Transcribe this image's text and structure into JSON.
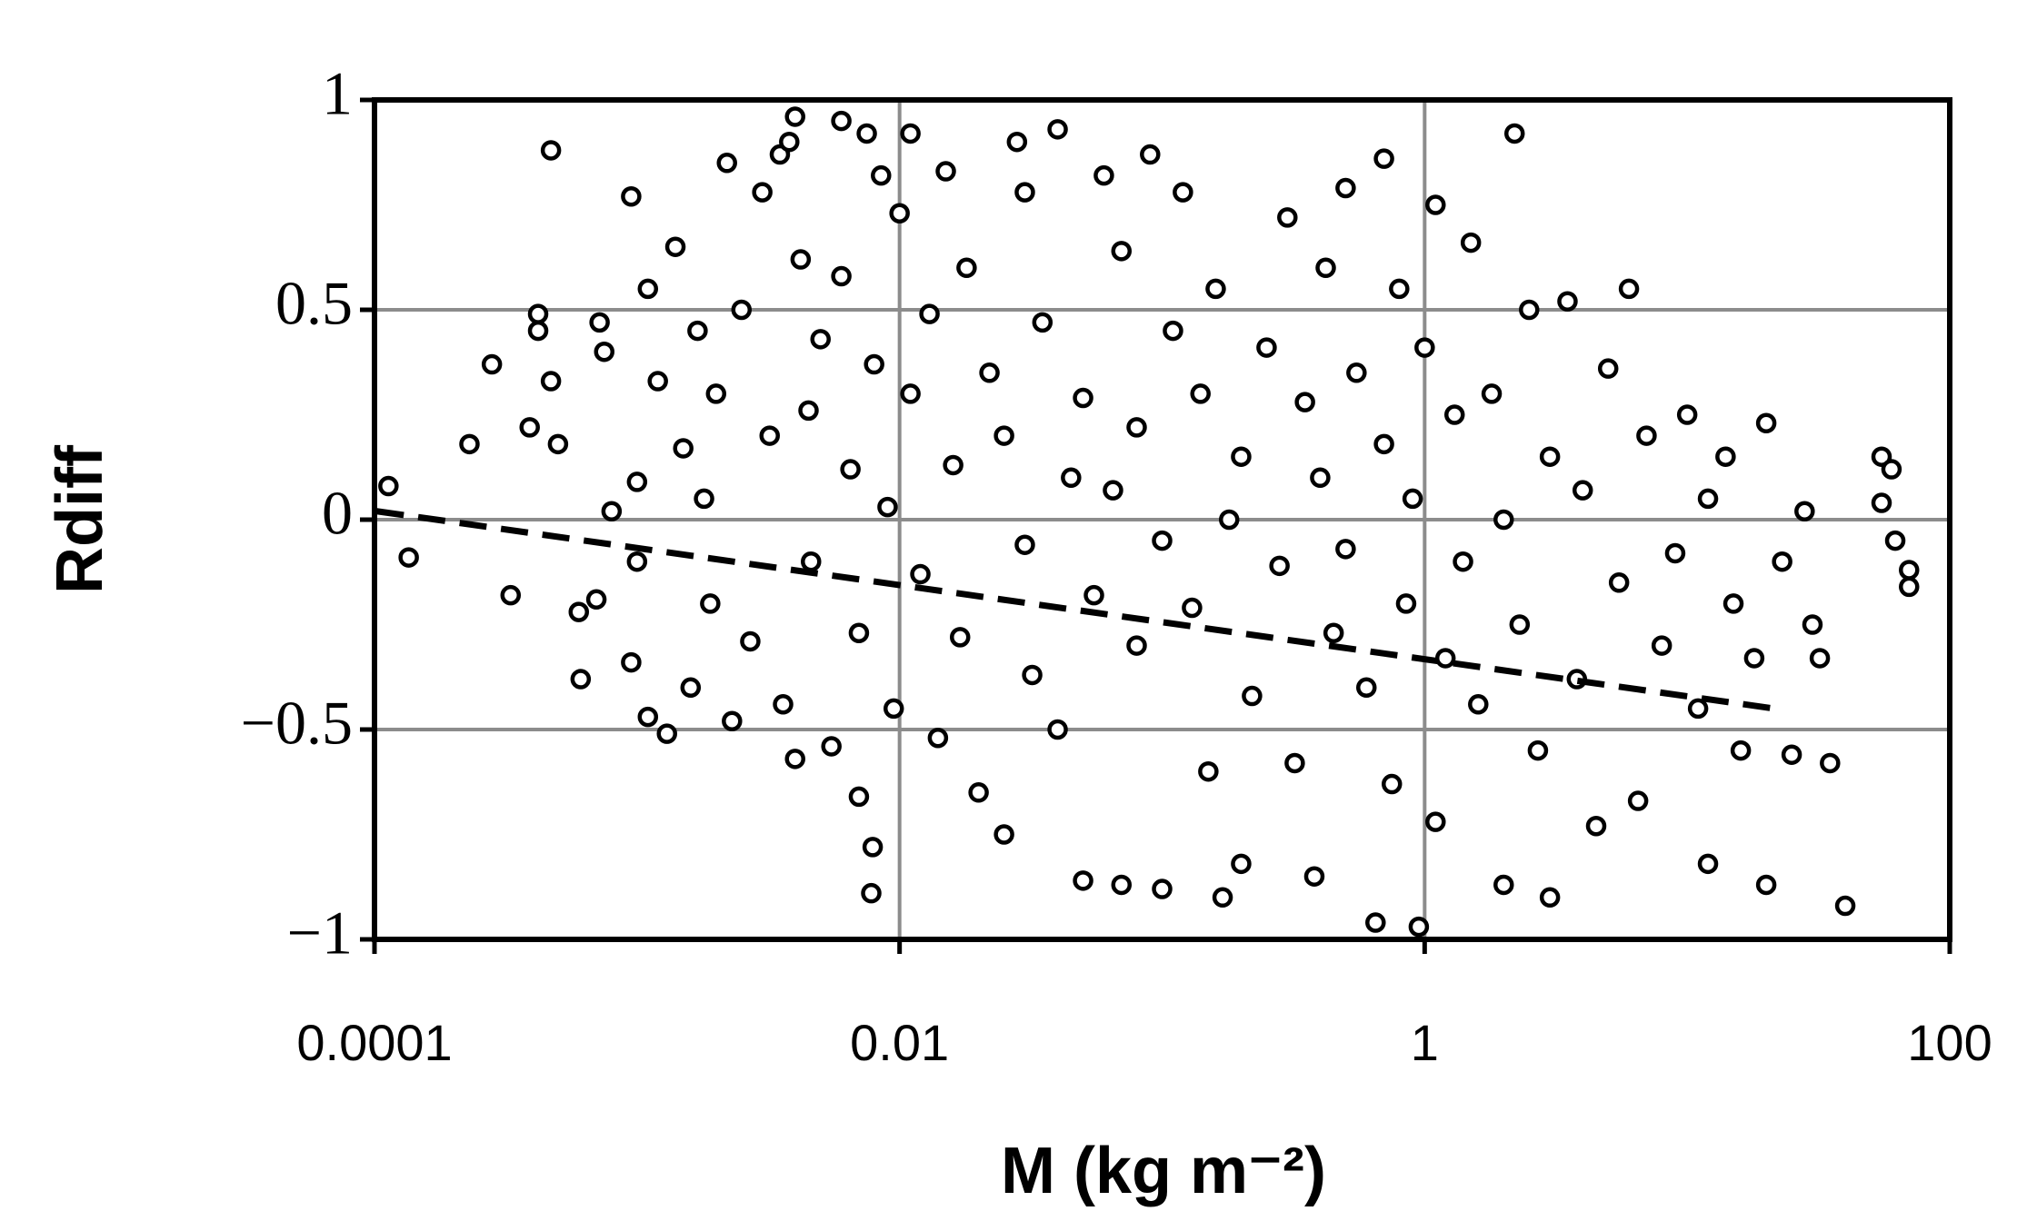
{
  "chart_data": {
    "type": "scatter",
    "x_label": "M (kg m⁻²)",
    "y_label": "Rdiff",
    "xscale": "log",
    "grid": true,
    "xlim": [
      0.0001,
      100
    ],
    "xticks": [
      0.0001,
      0.01,
      1,
      100
    ],
    "ylim": [
      -1,
      1
    ],
    "yticks": [
      {
        "value": -1,
        "label": "−1"
      },
      {
        "value": -0.5,
        "label": "−0.5"
      },
      0,
      0.5,
      1
    ],
    "series": [
      {
        "color": "#000000",
        "x": [
          0.000113,
          0.000135,
          0.00023,
          0.00028,
          0.00033,
          0.00039,
          0.00042,
          0.00042,
          0.00047,
          0.00047,
          0.0005,
          0.0006,
          0.00061,
          0.0007,
          0.00072,
          0.00075,
          0.0008,
          0.00095,
          0.00095,
          0.001,
          0.001,
          0.0011,
          0.0011,
          0.0012,
          0.0013,
          0.0014,
          0.0015,
          0.0016,
          0.0017,
          0.0018,
          0.0019,
          0.002,
          0.0022,
          0.0023,
          0.0025,
          0.0027,
          0.003,
          0.0032,
          0.0035,
          0.0036,
          0.0038,
          0.004,
          0.004,
          0.0042,
          0.0045,
          0.0046,
          0.005,
          0.0055,
          0.006,
          0.006,
          0.0065,
          0.007,
          0.0075,
          0.007,
          0.008,
          0.0078,
          0.0079,
          0.0085,
          0.009,
          0.0095,
          0.01,
          0.011,
          0.011,
          0.012,
          0.013,
          0.014,
          0.015,
          0.016,
          0.017,
          0.018,
          0.02,
          0.022,
          0.025,
          0.025,
          0.028,
          0.03,
          0.03,
          0.032,
          0.035,
          0.04,
          0.04,
          0.045,
          0.05,
          0.05,
          0.055,
          0.06,
          0.065,
          0.07,
          0.07,
          0.08,
          0.08,
          0.09,
          0.1,
          0.1,
          0.11,
          0.12,
          0.13,
          0.14,
          0.15,
          0.16,
          0.17,
          0.18,
          0.2,
          0.2,
          0.22,
          0.25,
          0.28,
          0.3,
          0.32,
          0.35,
          0.38,
          0.4,
          0.42,
          0.45,
          0.5,
          0.5,
          0.55,
          0.6,
          0.65,
          0.7,
          0.7,
          0.75,
          0.8,
          0.85,
          0.9,
          0.95,
          1.0,
          1.1,
          1.1,
          1.2,
          1.3,
          1.4,
          1.5,
          1.6,
          1.8,
          2.0,
          2.0,
          2.2,
          2.3,
          2.5,
          2.7,
          3.0,
          3.0,
          3.5,
          3.8,
          4.0,
          4.5,
          5.0,
          5.5,
          6.0,
          6.5,
          7.0,
          8.0,
          9.0,
          10,
          11,
          12,
          12,
          14,
          15,
          16,
          18,
          20,
          20,
          23,
          25,
          28,
          32,
          35,
          30,
          40,
          55,
          60,
          55,
          62,
          70,
          70
        ],
        "values": [
          0.08,
          -0.09,
          0.18,
          0.37,
          -0.18,
          0.22,
          0.49,
          0.45,
          0.88,
          0.33,
          0.18,
          -0.22,
          -0.38,
          -0.19,
          0.47,
          0.4,
          0.02,
          0.77,
          -0.34,
          0.09,
          -0.1,
          0.55,
          -0.47,
          0.33,
          -0.51,
          0.65,
          0.17,
          -0.4,
          0.45,
          0.05,
          -0.2,
          0.3,
          0.85,
          -0.48,
          0.5,
          -0.29,
          0.78,
          0.2,
          0.87,
          -0.44,
          0.9,
          -0.57,
          0.96,
          0.62,
          0.26,
          -0.1,
          0.43,
          -0.54,
          0.95,
          0.58,
          0.12,
          -0.27,
          0.92,
          -0.66,
          0.37,
          -0.89,
          -0.78,
          0.82,
          0.03,
          -0.45,
          0.73,
          0.92,
          0.3,
          -0.13,
          0.49,
          -0.52,
          0.83,
          0.13,
          -0.28,
          0.6,
          -0.65,
          0.35,
          0.2,
          -0.75,
          0.9,
          -0.06,
          0.78,
          -0.37,
          0.47,
          -0.5,
          0.93,
          0.1,
          0.29,
          -0.86,
          -0.18,
          0.82,
          0.07,
          -0.87,
          0.64,
          -0.3,
          0.22,
          0.87,
          -0.05,
          -0.88,
          0.45,
          0.78,
          -0.21,
          0.3,
          -0.6,
          0.55,
          -0.9,
          0.0,
          0.15,
          -0.82,
          -0.42,
          0.41,
          -0.11,
          0.72,
          -0.58,
          0.28,
          -0.85,
          0.1,
          0.6,
          -0.27,
          0.79,
          -0.07,
          0.35,
          -0.4,
          -0.96,
          0.86,
          0.18,
          -0.63,
          0.55,
          -0.2,
          0.05,
          -0.97,
          0.41,
          -0.72,
          0.75,
          -0.33,
          0.25,
          -0.1,
          0.66,
          -0.44,
          0.3,
          -0.87,
          0.0,
          0.92,
          -0.25,
          0.5,
          -0.55,
          0.15,
          -0.9,
          0.52,
          -0.38,
          0.07,
          -0.73,
          0.36,
          -0.15,
          0.55,
          -0.67,
          0.2,
          -0.3,
          -0.08,
          0.25,
          -0.45,
          -0.82,
          0.05,
          0.15,
          -0.2,
          -0.55,
          -0.33,
          -0.87,
          0.23,
          -0.1,
          -0.56,
          0.02,
          -0.33,
          -0.58,
          -0.25,
          -0.92,
          0.15,
          0.12,
          0.04,
          -0.05,
          -0.12,
          -0.16
        ]
      }
    ],
    "trendline": {
      "color": "#000000",
      "x": [
        0.000102,
        21.4
      ],
      "values": [
        0.02,
        -0.45
      ]
    }
  }
}
